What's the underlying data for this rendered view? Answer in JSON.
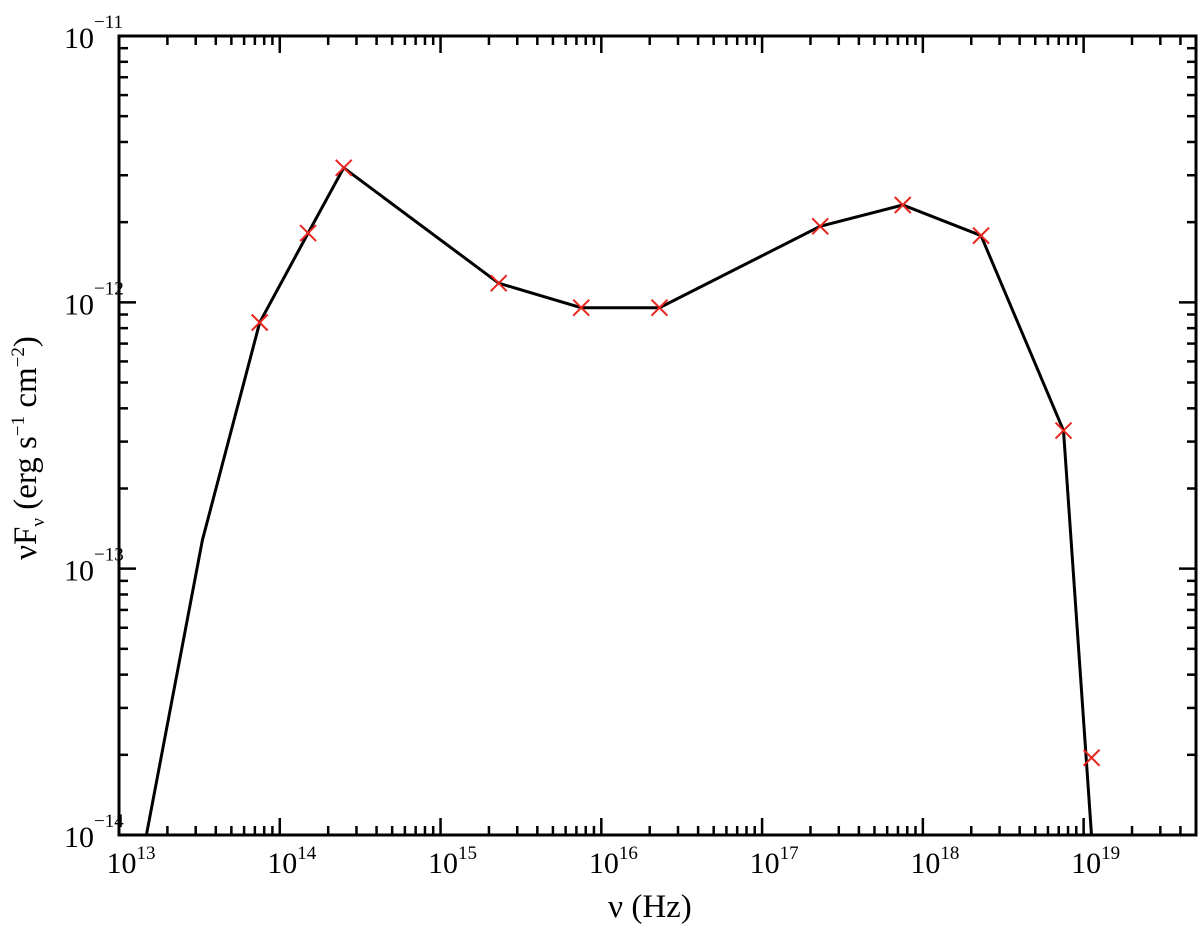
{
  "chart_data": {
    "type": "line",
    "xlabel": {
      "symbol": "ν",
      "unit": "(Hz)"
    },
    "ylabel": {
      "main": "νF",
      "sub": "ν",
      "unit_open": "(erg s",
      "unit_sup1": "−1",
      "unit_mid": " cm",
      "unit_sup2": "−2",
      "unit_close": ")"
    },
    "x_scale": "log",
    "y_scale": "log",
    "xlim": [
      10000000000000.0,
      5e+19
    ],
    "ylim": [
      1e-14,
      1e-11
    ],
    "x_major_ticks": [
      {
        "value": 10000000000000.0,
        "base": "10",
        "exp": "13"
      },
      {
        "value": 100000000000000.0,
        "base": "10",
        "exp": "14"
      },
      {
        "value": 1000000000000000.0,
        "base": "10",
        "exp": "15"
      },
      {
        "value": 1e+16,
        "base": "10",
        "exp": "16"
      },
      {
        "value": 1e+17,
        "base": "10",
        "exp": "17"
      },
      {
        "value": 1e+18,
        "base": "10",
        "exp": "18"
      },
      {
        "value": 1e+19,
        "base": "10",
        "exp": "19"
      }
    ],
    "y_major_ticks": [
      {
        "value": 1e-14,
        "base": "10",
        "exp": "−14"
      },
      {
        "value": 1e-13,
        "base": "10",
        "exp": "−13"
      },
      {
        "value": 1e-12,
        "base": "10",
        "exp": "−12"
      },
      {
        "value": 1e-11,
        "base": "10",
        "exp": "−11"
      }
    ],
    "grid": false,
    "legend": "none",
    "series": [
      {
        "style": "line",
        "color": "#000000",
        "x": [
          14800000000000.0,
          33000000000000.0,
          75000000000000.0,
          150000000000000.0,
          250000000000000.0,
          2300000000000000.0,
          7500000000000000.0,
          2.3e+16,
          2.3e+17,
          7.5e+17,
          2.3e+18,
          7.5e+18,
          1.12e+19
        ],
        "y": [
          1e-14,
          1.28e-13,
          8.4e-13,
          1.82e-12,
          3.2e-12,
          1.18e-12,
          9.55e-13,
          9.55e-13,
          1.93e-12,
          2.32e-12,
          1.78e-12,
          3.3e-13,
          1e-14
        ]
      },
      {
        "style": "markers",
        "marker": "x",
        "color": "#e8261e",
        "x": [
          75000000000000.0,
          150000000000000.0,
          250000000000000.0,
          2300000000000000.0,
          7500000000000000.0,
          2.3e+16,
          2.3e+17,
          7.5e+17,
          2.3e+18,
          7.5e+18,
          1.12e+19
        ],
        "y": [
          8.4e-13,
          1.82e-12,
          3.2e-12,
          1.18e-12,
          9.55e-13,
          9.55e-13,
          1.93e-12,
          2.32e-12,
          1.78e-12,
          3.3e-13,
          1.95e-14
        ]
      }
    ]
  }
}
